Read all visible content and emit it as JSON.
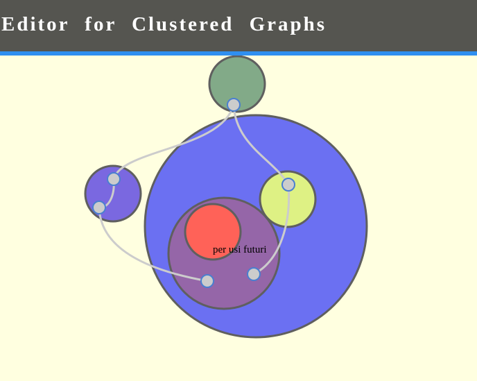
{
  "header": {
    "title": "Editor for Clustered Graphs"
  },
  "colors": {
    "background": "#ffffe0",
    "header_bg": "#555550",
    "header_accent": "#2f8ff0",
    "cluster_green": "#82aa88",
    "cluster_blue": "#6b70f2",
    "cluster_purple_small": "#7a68e0",
    "cluster_yellow": "#def184",
    "cluster_purple_inner": "#9566a8",
    "cluster_red": "#ff6258",
    "edge": "#cccccc",
    "port_fill": "#cccccc",
    "port_stroke": "#4a7fd0"
  },
  "graph": {
    "label": "per usi futuri"
  }
}
